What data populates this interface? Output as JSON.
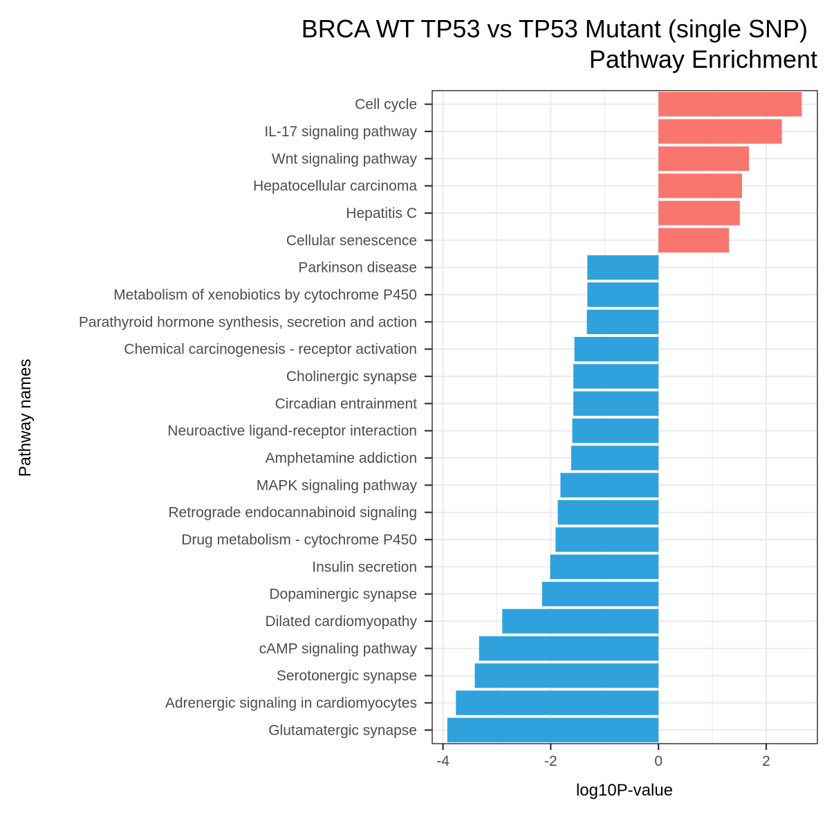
{
  "chart_data": {
    "type": "bar",
    "orientation": "horizontal",
    "title": "BRCA WT TP53 vs TP53 Mutant (single SNP)",
    "subtitle": "Pathway Enrichment",
    "xlabel": "log10P-value",
    "ylabel": "Pathway names",
    "xlim": [
      -4.2,
      2.95
    ],
    "xticks": [
      -4,
      -2,
      0,
      2
    ],
    "xtick_labels": [
      "-4",
      "-2",
      "0",
      "2"
    ],
    "grid": true,
    "legend": "none",
    "colors": {
      "positive": "#F8766D",
      "negative": "#2FA1DD"
    },
    "categories": [
      "Cell cycle",
      "IL-17 signaling pathway",
      "Wnt signaling pathway",
      "Hepatocellular carcinoma",
      "Hepatitis C",
      "Cellular senescence",
      "Parkinson disease",
      "Metabolism of xenobiotics by cytochrome P450",
      "Parathyroid hormone synthesis, secretion and action",
      "Chemical carcinogenesis - receptor activation",
      "Cholinergic synapse",
      "Circadian entrainment",
      "Neuroactive ligand-receptor interaction",
      "Amphetamine addiction",
      "MAPK signaling pathway",
      "Retrograde endocannabinoid signaling",
      "Drug metabolism - cytochrome P450",
      "Insulin secretion",
      "Dopaminergic synapse",
      "Dilated cardiomyopathy",
      "cAMP signaling pathway",
      "Serotonergic synapse",
      "Adrenergic signaling in cardiomyocytes",
      "Glutamatergic synapse"
    ],
    "values": [
      2.66,
      2.29,
      1.68,
      1.55,
      1.51,
      1.31,
      -1.32,
      -1.32,
      -1.33,
      -1.56,
      -1.58,
      -1.58,
      -1.6,
      -1.62,
      -1.82,
      -1.87,
      -1.91,
      -2.01,
      -2.16,
      -2.9,
      -3.33,
      -3.41,
      -3.76,
      -3.92
    ]
  }
}
